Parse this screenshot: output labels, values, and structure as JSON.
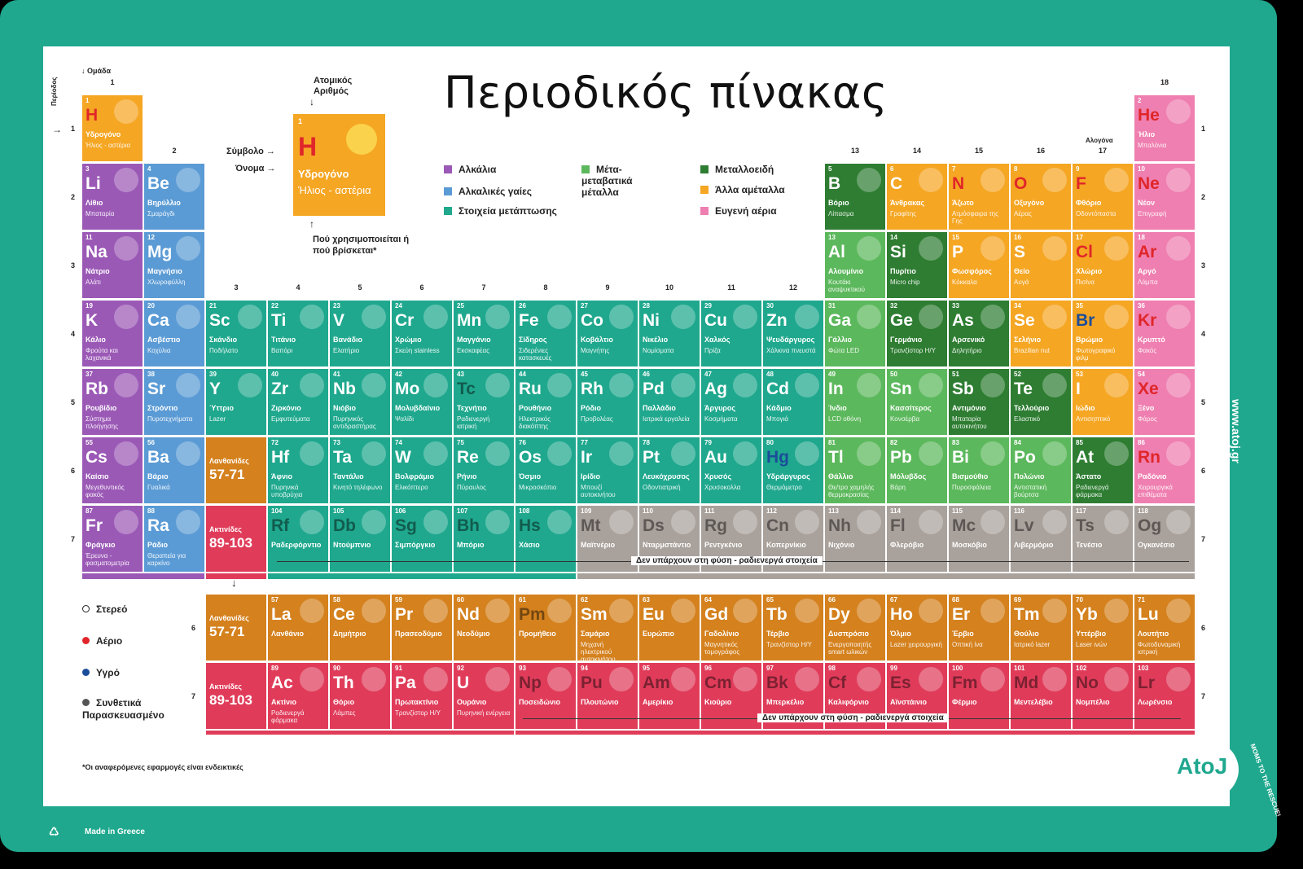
{
  "title": "Περιοδικός πίνακας",
  "group_label": "Ομάδα",
  "period_label": "Περίοδος",
  "key": {
    "atomic_number_label": "Ατομικός Αριθμός",
    "symbol_label": "Σύμβολο",
    "name_label": "Όνομα",
    "usage_label": "Πού χρησιμοποιείται ή πού βρίσκεται*",
    "number": "1",
    "symbol": "H",
    "name": "Υδρογόνο",
    "usage": "Ήλιος - αστέρια"
  },
  "legend": [
    {
      "label": "Αλκάλια",
      "color": "#9b59b6"
    },
    {
      "label": "Αλκαλικές γαίες",
      "color": "#5b9bd5"
    },
    {
      "label": "Στοιχεία μετάπτωσης",
      "color": "#1fa88e"
    },
    {
      "label": "Μέτα-μεταβατικά μέταλλα",
      "color": "#5cb85c"
    },
    {
      "label": "Μεταλλοειδή",
      "color": "#2e7d32"
    },
    {
      "label": "Άλλα αμέταλλα",
      "color": "#f5a623"
    },
    {
      "label": "Ευγενή αέρια",
      "color": "#ef7fb0"
    }
  ],
  "states": [
    {
      "label": "Στερεό",
      "color": "#ffffff"
    },
    {
      "label": "Αέριο",
      "color": "#e0262a"
    },
    {
      "label": "Υγρό",
      "color": "#1b4d9a"
    },
    {
      "label": "Συνθετικά Παρασκευασμένο",
      "color": "#555555"
    }
  ],
  "colors": {
    "alkali": "#9b59b6",
    "alkaline": "#5b9bd5",
    "transition": "#1fa88e",
    "post": "#5cb85c",
    "metalloid": "#2e7d32",
    "nonmetal": "#f5a623",
    "noble": "#ef7fb0",
    "lanthanide": "#d4811e",
    "actinide": "#e03c5a",
    "synthetic": "#a9a19b"
  },
  "group_numbers": [
    "1",
    "2",
    "3",
    "4",
    "5",
    "6",
    "7",
    "8",
    "9",
    "10",
    "11",
    "12",
    "13",
    "14",
    "15",
    "16",
    "17",
    "18"
  ],
  "halogen_label": "Αλογόνα",
  "period_numbers": [
    "1",
    "2",
    "3",
    "4",
    "5",
    "6",
    "7"
  ],
  "f_period_numbers": [
    "6",
    "7"
  ],
  "elements": [
    {
      "n": "1",
      "s": "H",
      "nm": "Υδρογόνο",
      "u": "Ήλιος - αστέρια",
      "g": 1,
      "p": 1,
      "c": "nonmetal",
      "st": "gas"
    },
    {
      "n": "2",
      "s": "He",
      "nm": "Ήλιο",
      "u": "Μπαλόνια",
      "g": 18,
      "p": 1,
      "c": "noble",
      "st": "gas"
    },
    {
      "n": "3",
      "s": "Li",
      "nm": "Λίθιο",
      "u": "Μπαταρία",
      "g": 1,
      "p": 2,
      "c": "alkali"
    },
    {
      "n": "4",
      "s": "Be",
      "nm": "Βηρύλλιο",
      "u": "Σμαράγδι",
      "g": 2,
      "p": 2,
      "c": "alkaline"
    },
    {
      "n": "5",
      "s": "B",
      "nm": "Βόριο",
      "u": "Λίπασμα",
      "g": 13,
      "p": 2,
      "c": "metalloid"
    },
    {
      "n": "6",
      "s": "C",
      "nm": "Άνθρακας",
      "u": "Γραφίτης",
      "g": 14,
      "p": 2,
      "c": "nonmetal"
    },
    {
      "n": "7",
      "s": "N",
      "nm": "Άζωτο",
      "u": "Ατμόσφαιρα της Γης",
      "g": 15,
      "p": 2,
      "c": "nonmetal",
      "st": "gas"
    },
    {
      "n": "8",
      "s": "O",
      "nm": "Οξυγόνο",
      "u": "Αέρας",
      "g": 16,
      "p": 2,
      "c": "nonmetal",
      "st": "gas"
    },
    {
      "n": "9",
      "s": "F",
      "nm": "Φθόριο",
      "u": "Οδοντόπαστα",
      "g": 17,
      "p": 2,
      "c": "nonmetal",
      "st": "gas"
    },
    {
      "n": "10",
      "s": "Ne",
      "nm": "Νέον",
      "u": "Επιγραφή",
      "g": 18,
      "p": 2,
      "c": "noble",
      "st": "gas"
    },
    {
      "n": "11",
      "s": "Na",
      "nm": "Νάτριο",
      "u": "Αλάτι",
      "g": 1,
      "p": 3,
      "c": "alkali"
    },
    {
      "n": "12",
      "s": "Mg",
      "nm": "Μαγνήσιο",
      "u": "Χλωροφύλλη",
      "g": 2,
      "p": 3,
      "c": "alkaline"
    },
    {
      "n": "13",
      "s": "Al",
      "nm": "Αλουμίνιο",
      "u": "Κουτάκι αναψυκτικού",
      "g": 13,
      "p": 3,
      "c": "post"
    },
    {
      "n": "14",
      "s": "Si",
      "nm": "Πυρίτιο",
      "u": "Micro chip",
      "g": 14,
      "p": 3,
      "c": "metalloid"
    },
    {
      "n": "15",
      "s": "P",
      "nm": "Φωσφόρος",
      "u": "Κόκκαλα",
      "g": 15,
      "p": 3,
      "c": "nonmetal"
    },
    {
      "n": "16",
      "s": "S",
      "nm": "Θείο",
      "u": "Αυγά",
      "g": 16,
      "p": 3,
      "c": "nonmetal"
    },
    {
      "n": "17",
      "s": "Cl",
      "nm": "Χλώριο",
      "u": "Πισίνα",
      "g": 17,
      "p": 3,
      "c": "nonmetal",
      "st": "gas"
    },
    {
      "n": "18",
      "s": "Ar",
      "nm": "Αργό",
      "u": "Λάμπα",
      "g": 18,
      "p": 3,
      "c": "noble",
      "st": "gas"
    },
    {
      "n": "19",
      "s": "K",
      "nm": "Κάλιο",
      "u": "Φρούτα και λαχανικά",
      "g": 1,
      "p": 4,
      "c": "alkali"
    },
    {
      "n": "20",
      "s": "Ca",
      "nm": "Ασβέστιο",
      "u": "Κοχύλια",
      "g": 2,
      "p": 4,
      "c": "alkaline"
    },
    {
      "n": "21",
      "s": "Sc",
      "nm": "Σκάνδιο",
      "u": "Ποδήλατο",
      "g": 3,
      "p": 4,
      "c": "transition"
    },
    {
      "n": "22",
      "s": "Ti",
      "nm": "Τιτάνιο",
      "u": "Βαπόρι",
      "g": 4,
      "p": 4,
      "c": "transition"
    },
    {
      "n": "23",
      "s": "V",
      "nm": "Βανάδιο",
      "u": "Ελατήριο",
      "g": 5,
      "p": 4,
      "c": "transition"
    },
    {
      "n": "24",
      "s": "Cr",
      "nm": "Χρώμιο",
      "u": "Σκεύη stainless",
      "g": 6,
      "p": 4,
      "c": "transition"
    },
    {
      "n": "25",
      "s": "Mn",
      "nm": "Μαγγάνιο",
      "u": "Εκσκαφέας",
      "g": 7,
      "p": 4,
      "c": "transition"
    },
    {
      "n": "26",
      "s": "Fe",
      "nm": "Σίδηρος",
      "u": "Σιδερένιες κατασκευές",
      "g": 8,
      "p": 4,
      "c": "transition"
    },
    {
      "n": "27",
      "s": "Co",
      "nm": "Κοβάλτιο",
      "u": "Μαγνήτης",
      "g": 9,
      "p": 4,
      "c": "transition"
    },
    {
      "n": "28",
      "s": "Ni",
      "nm": "Νικέλιο",
      "u": "Νομίσματα",
      "g": 10,
      "p": 4,
      "c": "transition"
    },
    {
      "n": "29",
      "s": "Cu",
      "nm": "Χαλκός",
      "u": "Πρίζα",
      "g": 11,
      "p": 4,
      "c": "transition"
    },
    {
      "n": "30",
      "s": "Zn",
      "nm": "Ψευδάργυρος",
      "u": "Χάλκινα πνευστά",
      "g": 12,
      "p": 4,
      "c": "transition"
    },
    {
      "n": "31",
      "s": "Ga",
      "nm": "Γάλλιο",
      "u": "Φώτα LED",
      "g": 13,
      "p": 4,
      "c": "post"
    },
    {
      "n": "32",
      "s": "Ge",
      "nm": "Γερμάνιο",
      "u": "Τρανζίστορ Η/Υ",
      "g": 14,
      "p": 4,
      "c": "metalloid"
    },
    {
      "n": "33",
      "s": "As",
      "nm": "Αρσενικό",
      "u": "Δηλητήριο",
      "g": 15,
      "p": 4,
      "c": "metalloid"
    },
    {
      "n": "34",
      "s": "Se",
      "nm": "Σελήνιο",
      "u": "Brazilian nut",
      "g": 16,
      "p": 4,
      "c": "nonmetal"
    },
    {
      "n": "35",
      "s": "Br",
      "nm": "Βρώμιο",
      "u": "Φωτογραφικό φιλμ",
      "g": 17,
      "p": 4,
      "c": "nonmetal",
      "st": "liq"
    },
    {
      "n": "36",
      "s": "Kr",
      "nm": "Κρυπτό",
      "u": "Φακός",
      "g": 18,
      "p": 4,
      "c": "noble",
      "st": "gas"
    },
    {
      "n": "37",
      "s": "Rb",
      "nm": "Ρουβίδιο",
      "u": "Σύστημα πλοήγησης",
      "g": 1,
      "p": 5,
      "c": "alkali"
    },
    {
      "n": "38",
      "s": "Sr",
      "nm": "Στρόντιο",
      "u": "Πυροτεχνήματα",
      "g": 2,
      "p": 5,
      "c": "alkaline"
    },
    {
      "n": "39",
      "s": "Y",
      "nm": "Ύττριο",
      "u": "Lazer",
      "g": 3,
      "p": 5,
      "c": "transition"
    },
    {
      "n": "40",
      "s": "Zr",
      "nm": "Ζιρκόνιο",
      "u": "Εμφυτεύματα",
      "g": 4,
      "p": 5,
      "c": "transition"
    },
    {
      "n": "41",
      "s": "Nb",
      "nm": "Νιόβιο",
      "u": "Πυρηνικός αντιδραστήρας",
      "g": 5,
      "p": 5,
      "c": "transition"
    },
    {
      "n": "42",
      "s": "Mo",
      "nm": "Μολυβδαίνιο",
      "u": "Ψαλίδι",
      "g": 6,
      "p": 5,
      "c": "transition"
    },
    {
      "n": "43",
      "s": "Tc",
      "nm": "Τεχνήτιο",
      "u": "Ραδιενεργή ιατρική",
      "g": 7,
      "p": 5,
      "c": "transition",
      "st": "syn"
    },
    {
      "n": "44",
      "s": "Ru",
      "nm": "Ρουθήνιο",
      "u": "Ηλεκτρικός διακόπτης",
      "g": 8,
      "p": 5,
      "c": "transition"
    },
    {
      "n": "45",
      "s": "Rh",
      "nm": "Ρόδιο",
      "u": "Προβολέας",
      "g": 9,
      "p": 5,
      "c": "transition"
    },
    {
      "n": "46",
      "s": "Pd",
      "nm": "Παλλάδιο",
      "u": "Ιατρικά εργαλεία",
      "g": 10,
      "p": 5,
      "c": "transition"
    },
    {
      "n": "47",
      "s": "Ag",
      "nm": "Άργυρος",
      "u": "Κοσμήματα",
      "g": 11,
      "p": 5,
      "c": "transition"
    },
    {
      "n": "48",
      "s": "Cd",
      "nm": "Κάδμιο",
      "u": "Μπογιά",
      "g": 12,
      "p": 5,
      "c": "transition"
    },
    {
      "n": "49",
      "s": "In",
      "nm": "Ίνδιο",
      "u": "LCD οθόνη",
      "g": 13,
      "p": 5,
      "c": "post"
    },
    {
      "n": "50",
      "s": "Sn",
      "nm": "Κασσίτερος",
      "u": "Κονσέρβα",
      "g": 14,
      "p": 5,
      "c": "post"
    },
    {
      "n": "51",
      "s": "Sb",
      "nm": "Αντιμόνιο",
      "u": "Μπαταρία αυτοκινήτου",
      "g": 15,
      "p": 5,
      "c": "metalloid"
    },
    {
      "n": "52",
      "s": "Te",
      "nm": "Τελλούριο",
      "u": "Ελαστικό",
      "g": 16,
      "p": 5,
      "c": "metalloid"
    },
    {
      "n": "53",
      "s": "I",
      "nm": "Ιώδιο",
      "u": "Αντισηπτικό",
      "g": 17,
      "p": 5,
      "c": "nonmetal"
    },
    {
      "n": "54",
      "s": "Xe",
      "nm": "Ξένο",
      "u": "Φάρος",
      "g": 18,
      "p": 5,
      "c": "noble",
      "st": "gas"
    },
    {
      "n": "55",
      "s": "Cs",
      "nm": "Καίσιο",
      "u": "Μεγεθυντικός φακός",
      "g": 1,
      "p": 6,
      "c": "alkali"
    },
    {
      "n": "56",
      "s": "Ba",
      "nm": "Βάριο",
      "u": "Γυαλικά",
      "g": 2,
      "p": 6,
      "c": "alkaline"
    },
    {
      "n": "72",
      "s": "Hf",
      "nm": "Άφνιο",
      "u": "Πυρηνικά υποβρύχια",
      "g": 4,
      "p": 6,
      "c": "transition"
    },
    {
      "n": "73",
      "s": "Ta",
      "nm": "Ταντάλιο",
      "u": "Κινητό τηλέφωνο",
      "g": 5,
      "p": 6,
      "c": "transition"
    },
    {
      "n": "74",
      "s": "W",
      "nm": "Βολφράμιο",
      "u": "Ελικόπτερο",
      "g": 6,
      "p": 6,
      "c": "transition"
    },
    {
      "n": "75",
      "s": "Re",
      "nm": "Ρήνιο",
      "u": "Πύραυλος",
      "g": 7,
      "p": 6,
      "c": "transition"
    },
    {
      "n": "76",
      "s": "Os",
      "nm": "Όσμιο",
      "u": "Μικροσκόπιο",
      "g": 8,
      "p": 6,
      "c": "transition"
    },
    {
      "n": "77",
      "s": "Ir",
      "nm": "Ιρίδιο",
      "u": "Μπουζί αυτοκινήτου",
      "g": 9,
      "p": 6,
      "c": "transition"
    },
    {
      "n": "78",
      "s": "Pt",
      "nm": "Λευκόχρυσος",
      "u": "Οδοντιατρική",
      "g": 10,
      "p": 6,
      "c": "transition"
    },
    {
      "n": "79",
      "s": "Au",
      "nm": "Χρυσός",
      "u": "Χρυσοκολλα",
      "g": 11,
      "p": 6,
      "c": "transition"
    },
    {
      "n": "80",
      "s": "Hg",
      "nm": "Υδράργυρος",
      "u": "Θερμόμετρο",
      "g": 12,
      "p": 6,
      "c": "transition",
      "st": "liq"
    },
    {
      "n": "81",
      "s": "Tl",
      "nm": "Θάλλιο",
      "u": "Θε/τρο χαμηλής θερμοκρασίας",
      "g": 13,
      "p": 6,
      "c": "post"
    },
    {
      "n": "82",
      "s": "Pb",
      "nm": "Μόλυβδος",
      "u": "Βάρη",
      "g": 14,
      "p": 6,
      "c": "post"
    },
    {
      "n": "83",
      "s": "Bi",
      "nm": "Βισμούθιο",
      "u": "Πυροσφάλεια",
      "g": 15,
      "p": 6,
      "c": "post"
    },
    {
      "n": "84",
      "s": "Po",
      "nm": "Πολώνιο",
      "u": "Αντιστατική βούρτσα",
      "g": 16,
      "p": 6,
      "c": "post"
    },
    {
      "n": "85",
      "s": "At",
      "nm": "Άστατο",
      "u": "Ραδιενεργά φάρμακα",
      "g": 17,
      "p": 6,
      "c": "metalloid"
    },
    {
      "n": "86",
      "s": "Rn",
      "nm": "Ραδόνιο",
      "u": "Χειρουργικά επιθέματα",
      "g": 18,
      "p": 6,
      "c": "noble",
      "st": "gas"
    },
    {
      "n": "87",
      "s": "Fr",
      "nm": "Φράγκιο",
      "u": "Έρευνα - φασματομετρία",
      "g": 1,
      "p": 7,
      "c": "alkali"
    },
    {
      "n": "88",
      "s": "Ra",
      "nm": "Ράδιο",
      "u": "Θεραπεία για καρκίνο",
      "g": 2,
      "p": 7,
      "c": "alkaline"
    },
    {
      "n": "104",
      "s": "Rf",
      "nm": "Ραδερφόρντιο",
      "u": "",
      "g": 4,
      "p": 7,
      "c": "transition",
      "st": "syn"
    },
    {
      "n": "105",
      "s": "Db",
      "nm": "Ντούμπνιο",
      "u": "",
      "g": 5,
      "p": 7,
      "c": "transition",
      "st": "syn"
    },
    {
      "n": "106",
      "s": "Sg",
      "nm": "Σιμπόργκιο",
      "u": "",
      "g": 6,
      "p": 7,
      "c": "transition",
      "st": "syn"
    },
    {
      "n": "107",
      "s": "Bh",
      "nm": "Μπόριο",
      "u": "",
      "g": 7,
      "p": 7,
      "c": "transition",
      "st": "syn"
    },
    {
      "n": "108",
      "s": "Hs",
      "nm": "Χάσιο",
      "u": "",
      "g": 8,
      "p": 7,
      "c": "transition",
      "st": "syn"
    },
    {
      "n": "109",
      "s": "Mt",
      "nm": "Μαϊτνέριο",
      "u": "",
      "g": 9,
      "p": 7,
      "c": "synthetic",
      "st": "syn"
    },
    {
      "n": "110",
      "s": "Ds",
      "nm": "Νταρμστάντιο",
      "u": "",
      "g": 10,
      "p": 7,
      "c": "synthetic",
      "st": "syn"
    },
    {
      "n": "111",
      "s": "Rg",
      "nm": "Ρεντγκένιο",
      "u": "",
      "g": 11,
      "p": 7,
      "c": "synthetic",
      "st": "syn"
    },
    {
      "n": "112",
      "s": "Cn",
      "nm": "Κοπερνίκιο",
      "u": "",
      "g": 12,
      "p": 7,
      "c": "synthetic",
      "st": "syn"
    },
    {
      "n": "113",
      "s": "Nh",
      "nm": "Νιχόνιο",
      "u": "",
      "g": 13,
      "p": 7,
      "c": "synthetic",
      "st": "syn"
    },
    {
      "n": "114",
      "s": "Fl",
      "nm": "Φλερόβιο",
      "u": "",
      "g": 14,
      "p": 7,
      "c": "synthetic",
      "st": "syn"
    },
    {
      "n": "115",
      "s": "Mc",
      "nm": "Μοσκόβιο",
      "u": "",
      "g": 15,
      "p": 7,
      "c": "synthetic",
      "st": "syn"
    },
    {
      "n": "116",
      "s": "Lv",
      "nm": "Λιβερμόριο",
      "u": "",
      "g": 16,
      "p": 7,
      "c": "synthetic",
      "st": "syn"
    },
    {
      "n": "117",
      "s": "Ts",
      "nm": "Τενέσιο",
      "u": "",
      "g": 17,
      "p": 7,
      "c": "synthetic",
      "st": "syn"
    },
    {
      "n": "118",
      "s": "Og",
      "nm": "Ογκανέσιο",
      "u": "",
      "g": 18,
      "p": 7,
      "c": "synthetic",
      "st": "syn"
    }
  ],
  "placeholders": [
    {
      "label": "Λανθανίδες",
      "range": "57-71",
      "p": 6,
      "c": "lanthanide"
    },
    {
      "label": "Ακτινίδες",
      "range": "89-103",
      "p": 7,
      "c": "actinide"
    }
  ],
  "f_placeholders": [
    {
      "label": "Λανθανίδες",
      "range": "57-71",
      "c": "lanthanide"
    },
    {
      "label": "Ακτινίδες",
      "range": "89-103",
      "c": "actinide"
    }
  ],
  "lanthanides": [
    {
      "n": "57",
      "s": "La",
      "nm": "Λανθάνιο",
      "u": ""
    },
    {
      "n": "58",
      "s": "Ce",
      "nm": "Δημήτριο",
      "u": ""
    },
    {
      "n": "59",
      "s": "Pr",
      "nm": "Πρασεοδύμιο",
      "u": ""
    },
    {
      "n": "60",
      "s": "Nd",
      "nm": "Νεοδύμιο",
      "u": ""
    },
    {
      "n": "61",
      "s": "Pm",
      "nm": "Προμήθειο",
      "u": "",
      "st": "syn"
    },
    {
      "n": "62",
      "s": "Sm",
      "nm": "Σαμάριο",
      "u": "Μηχανή ηλεκτρικού αυτοκινήτου"
    },
    {
      "n": "63",
      "s": "Eu",
      "nm": "Ευρώπιο",
      "u": ""
    },
    {
      "n": "64",
      "s": "Gd",
      "nm": "Γαδολίνιο",
      "u": "Μαγνητικός τομογράφος"
    },
    {
      "n": "65",
      "s": "Tb",
      "nm": "Τέρβιο",
      "u": "Τρανζίστορ Η/Υ"
    },
    {
      "n": "66",
      "s": "Dy",
      "nm": "Δυσπρόσιο",
      "u": "Ενεργοποιητής smart ωλικών"
    },
    {
      "n": "67",
      "s": "Ho",
      "nm": "Όλμιο",
      "u": "Lazer χειρουργική"
    },
    {
      "n": "68",
      "s": "Er",
      "nm": "Έρβιο",
      "u": "Οπτική ίνα"
    },
    {
      "n": "69",
      "s": "Tm",
      "nm": "Θούλιο",
      "u": "Ιατρικό lazer"
    },
    {
      "n": "70",
      "s": "Yb",
      "nm": "Υττέρβιο",
      "u": "Laser ινών"
    },
    {
      "n": "71",
      "s": "Lu",
      "nm": "Λουτήτιο",
      "u": "Φωτοδυναμική ιατρική"
    }
  ],
  "actinides": [
    {
      "n": "89",
      "s": "Ac",
      "nm": "Ακτίνιο",
      "u": "Ραδιενεργά φάρμακα"
    },
    {
      "n": "90",
      "s": "Th",
      "nm": "Θόριο",
      "u": "Λάμπες"
    },
    {
      "n": "91",
      "s": "Pa",
      "nm": "Πρωτακτίνιο",
      "u": "Τρανζίστορ Η/Υ"
    },
    {
      "n": "92",
      "s": "U",
      "nm": "Ουράνιο",
      "u": "Πυρηνική ενέργεια"
    },
    {
      "n": "93",
      "s": "Np",
      "nm": "Ποσειδώνιο",
      "u": "",
      "st": "syn"
    },
    {
      "n": "94",
      "s": "Pu",
      "nm": "Πλουτώνιο",
      "u": "",
      "st": "syn"
    },
    {
      "n": "95",
      "s": "Am",
      "nm": "Αμερίκιο",
      "u": "",
      "st": "syn"
    },
    {
      "n": "96",
      "s": "Cm",
      "nm": "Κιούριο",
      "u": "",
      "st": "syn"
    },
    {
      "n": "97",
      "s": "Bk",
      "nm": "Μπερκέλιο",
      "u": "",
      "st": "syn"
    },
    {
      "n": "98",
      "s": "Cf",
      "nm": "Καλιφόρνιο",
      "u": "",
      "st": "syn"
    },
    {
      "n": "99",
      "s": "Es",
      "nm": "Αϊνστάινιο",
      "u": "",
      "st": "syn"
    },
    {
      "n": "100",
      "s": "Fm",
      "nm": "Φέρμιο",
      "u": "",
      "st": "syn"
    },
    {
      "n": "101",
      "s": "Md",
      "nm": "Μεντελέβιο",
      "u": "",
      "st": "syn"
    },
    {
      "n": "102",
      "s": "No",
      "nm": "Νομπέλιο",
      "u": "",
      "st": "syn"
    },
    {
      "n": "103",
      "s": "Lr",
      "nm": "Λωρένσιο",
      "u": "",
      "st": "syn"
    }
  ],
  "not_natural_label": "Δεν υπάρχουν στη φύση - ραδιενεργά στοιχεία",
  "footnote": "*Οι αναφερόμενες εφαρμογές είναι ενδεικτικές",
  "made_in": "Made in Greece",
  "website": "www.atoj.gr",
  "brand": "AtoJ",
  "tagline": "MOMS TO THE RESCUE!"
}
